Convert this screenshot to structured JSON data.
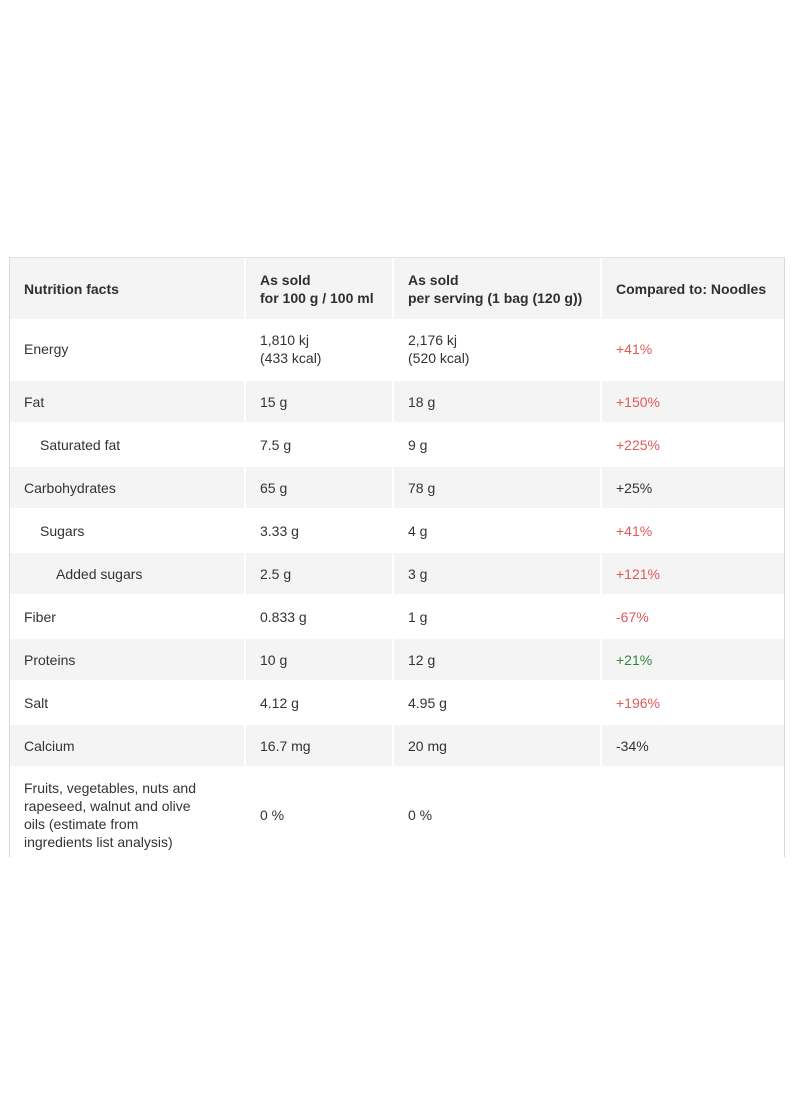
{
  "table": {
    "headers": {
      "nutrient": "Nutrition facts",
      "per100_line1": "As sold",
      "per100_line2": "for 100 g / 100 ml",
      "serving_line1": "As sold",
      "serving_line2": "per serving (1 bag (120 g))",
      "compared": "Compared to: Noodles"
    },
    "rows": [
      {
        "name": "Energy",
        "per100_line1": "1,810 kj",
        "per100_line2": "(433 kcal)",
        "serving_line1": "2,176 kj",
        "serving_line2": "(520 kcal)",
        "compared": "+41%",
        "compared_color": "#e05a5a"
      },
      {
        "name": "Fat",
        "per100": "15 g",
        "serving": "18 g",
        "compared": "+150%",
        "compared_color": "#e05a5a"
      },
      {
        "name": "Saturated fat",
        "per100": "7.5 g",
        "serving": "9 g",
        "compared": "+225%",
        "compared_color": "#e05a5a"
      },
      {
        "name": "Carbohydrates",
        "per100": "65 g",
        "serving": "78 g",
        "compared": "+25%",
        "compared_color": "#333333"
      },
      {
        "name": "Sugars",
        "per100": "3.33 g",
        "serving": "4 g",
        "compared": "+41%",
        "compared_color": "#e05a5a"
      },
      {
        "name": "Added sugars",
        "per100": "2.5 g",
        "serving": "3 g",
        "compared": "+121%",
        "compared_color": "#e05a5a"
      },
      {
        "name": "Fiber",
        "per100": "0.833 g",
        "serving": "1 g",
        "compared": "-67%",
        "compared_color": "#e05a5a"
      },
      {
        "name": "Proteins",
        "per100": "10 g",
        "serving": "12 g",
        "compared": "+21%",
        "compared_color": "#2e8b3c"
      },
      {
        "name": "Salt",
        "per100": "4.12 g",
        "serving": "4.95 g",
        "compared": "+196%",
        "compared_color": "#e05a5a"
      },
      {
        "name": "Calcium",
        "per100": "16.7 mg",
        "serving": "20 mg",
        "compared": "-34%",
        "compared_color": "#333333"
      },
      {
        "name_line1": "Fruits, vegetables, nuts and",
        "name_line2": "rapeseed, walnut and olive",
        "name_line3": "oils (estimate from",
        "name_line4": "ingredients list analysis)",
        "per100": "0 %",
        "serving": "0 %",
        "compared": ""
      }
    ]
  }
}
